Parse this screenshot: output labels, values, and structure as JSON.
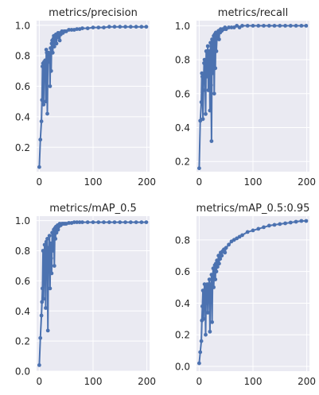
{
  "chart_data": [
    {
      "type": "line",
      "title": "metrics/precision",
      "xlabel": "",
      "ylabel": "",
      "xlim": [
        -5,
        205
      ],
      "ylim": [
        0.04,
        1.03
      ],
      "xticks": [
        0,
        100,
        200
      ],
      "yticks": [
        0.2,
        0.4,
        0.6,
        0.8,
        1.0
      ],
      "ytick_labels": [
        "0.2",
        "0.4",
        "0.6",
        "0.8",
        "1.0"
      ],
      "grid": true,
      "series": [
        {
          "color": "#4c72b0",
          "x": [
            0,
            2,
            4,
            5,
            6,
            7,
            8,
            9,
            10,
            11,
            12,
            13,
            14,
            15,
            16,
            17,
            18,
            19,
            20,
            21,
            22,
            23,
            24,
            25,
            26,
            27,
            28,
            29,
            30,
            31,
            32,
            33,
            34,
            35,
            36,
            37,
            38,
            39,
            40,
            42,
            44,
            46,
            48,
            50,
            55,
            60,
            65,
            70,
            75,
            80,
            90,
            100,
            110,
            120,
            130,
            140,
            150,
            160,
            170,
            180,
            190,
            199
          ],
          "y": [
            0.07,
            0.25,
            0.37,
            0.51,
            0.73,
            0.75,
            0.48,
            0.76,
            0.7,
            0.77,
            0.5,
            0.84,
            0.82,
            0.42,
            0.78,
            0.82,
            0.76,
            0.8,
            0.6,
            0.85,
            0.7,
            0.88,
            0.9,
            0.82,
            0.91,
            0.93,
            0.86,
            0.92,
            0.9,
            0.94,
            0.88,
            0.93,
            0.92,
            0.95,
            0.93,
            0.94,
            0.9,
            0.95,
            0.94,
            0.96,
            0.95,
            0.96,
            0.96,
            0.96,
            0.97,
            0.97,
            0.97,
            0.975,
            0.975,
            0.98,
            0.98,
            0.985,
            0.985,
            0.985,
            0.99,
            0.99,
            0.99,
            0.99,
            0.99,
            0.99,
            0.99,
            0.99
          ]
        }
      ]
    },
    {
      "type": "line",
      "title": "metrics/recall",
      "xlabel": "",
      "ylabel": "",
      "xlim": [
        -5,
        205
      ],
      "ylim": [
        0.14,
        1.03
      ],
      "xticks": [
        0,
        100,
        200
      ],
      "yticks": [
        0.2,
        0.4,
        0.6,
        0.8,
        1.0
      ],
      "ytick_labels": [
        "0.2",
        "0.4",
        "0.6",
        "0.8",
        "1.0"
      ],
      "grid": true,
      "series": [
        {
          "color": "#4c72b0",
          "x": [
            0,
            2,
            4,
            5,
            6,
            7,
            8,
            9,
            10,
            11,
            12,
            13,
            14,
            15,
            16,
            17,
            18,
            19,
            20,
            21,
            22,
            23,
            24,
            25,
            26,
            27,
            28,
            29,
            30,
            31,
            32,
            33,
            34,
            35,
            36,
            37,
            38,
            39,
            40,
            42,
            44,
            46,
            48,
            50,
            55,
            60,
            65,
            70,
            75,
            80,
            90,
            100,
            110,
            120,
            130,
            140,
            150,
            160,
            170,
            180,
            190,
            199
          ],
          "y": [
            0.16,
            0.44,
            0.55,
            0.72,
            0.7,
            0.45,
            0.62,
            0.78,
            0.8,
            0.71,
            0.48,
            0.85,
            0.7,
            0.75,
            0.88,
            0.62,
            0.8,
            0.85,
            0.5,
            0.9,
            0.65,
            0.32,
            0.92,
            0.72,
            0.8,
            0.94,
            0.6,
            0.95,
            0.75,
            0.96,
            0.85,
            0.93,
            0.96,
            0.94,
            0.97,
            0.92,
            0.97,
            0.96,
            0.98,
            0.97,
            0.98,
            0.98,
            0.99,
            0.98,
            0.99,
            0.99,
            0.99,
            1.0,
            0.99,
            1.0,
            1.0,
            1.0,
            1.0,
            1.0,
            1.0,
            1.0,
            1.0,
            1.0,
            1.0,
            1.0,
            1.0,
            1.0
          ]
        }
      ]
    },
    {
      "type": "line",
      "title": "metrics/mAP_0.5",
      "xlabel": "",
      "ylabel": "",
      "xlim": [
        -5,
        205
      ],
      "ylim": [
        0.0,
        1.03
      ],
      "xticks": [
        0,
        100,
        200
      ],
      "yticks": [
        0.0,
        0.2,
        0.4,
        0.6,
        0.8,
        1.0
      ],
      "ytick_labels": [
        "0.0",
        "0.2",
        "0.4",
        "0.6",
        "0.8",
        "1.0"
      ],
      "grid": true,
      "series": [
        {
          "color": "#4c72b0",
          "x": [
            0,
            2,
            4,
            5,
            6,
            7,
            8,
            9,
            10,
            11,
            12,
            13,
            14,
            15,
            16,
            17,
            18,
            19,
            20,
            21,
            22,
            23,
            24,
            25,
            26,
            27,
            28,
            29,
            30,
            31,
            32,
            33,
            34,
            35,
            36,
            37,
            38,
            39,
            40,
            42,
            44,
            46,
            48,
            50,
            55,
            60,
            65,
            70,
            75,
            80,
            90,
            100,
            110,
            120,
            130,
            140,
            150,
            160,
            170,
            180,
            190,
            199
          ],
          "y": [
            0.04,
            0.22,
            0.37,
            0.46,
            0.55,
            0.8,
            0.48,
            0.75,
            0.84,
            0.65,
            0.42,
            0.86,
            0.7,
            0.88,
            0.27,
            0.82,
            0.78,
            0.9,
            0.55,
            0.85,
            0.75,
            0.65,
            0.92,
            0.8,
            0.9,
            0.94,
            0.7,
            0.95,
            0.88,
            0.96,
            0.92,
            0.95,
            0.97,
            0.94,
            0.96,
            0.97,
            0.98,
            0.97,
            0.97,
            0.98,
            0.98,
            0.98,
            0.98,
            0.98,
            0.985,
            0.985,
            0.99,
            0.99,
            0.99,
            0.99,
            0.99,
            0.99,
            0.99,
            0.99,
            0.99,
            0.99,
            0.99,
            0.99,
            0.99,
            0.99,
            0.99,
            0.99
          ]
        }
      ]
    },
    {
      "type": "line",
      "title": "metrics/mAP_0.5:0.95",
      "xlabel": "",
      "ylabel": "",
      "xlim": [
        -5,
        205
      ],
      "ylim": [
        -0.03,
        0.95
      ],
      "xticks": [
        0,
        100,
        200
      ],
      "yticks": [
        0.0,
        0.2,
        0.4,
        0.6,
        0.8
      ],
      "ytick_labels": [
        "0.0",
        "0.2",
        "0.4",
        "0.6",
        "0.8"
      ],
      "grid": true,
      "series": [
        {
          "color": "#4c72b0",
          "x": [
            0,
            2,
            4,
            5,
            6,
            7,
            8,
            9,
            10,
            11,
            12,
            13,
            14,
            15,
            16,
            17,
            18,
            19,
            20,
            21,
            22,
            23,
            24,
            25,
            26,
            27,
            28,
            29,
            30,
            31,
            32,
            33,
            34,
            35,
            36,
            37,
            38,
            39,
            40,
            42,
            44,
            46,
            48,
            50,
            55,
            60,
            65,
            70,
            75,
            80,
            90,
            100,
            110,
            120,
            130,
            140,
            150,
            160,
            170,
            180,
            190,
            199
          ],
          "y": [
            0.02,
            0.09,
            0.16,
            0.29,
            0.38,
            0.48,
            0.3,
            0.45,
            0.52,
            0.44,
            0.2,
            0.5,
            0.4,
            0.52,
            0.34,
            0.48,
            0.52,
            0.55,
            0.22,
            0.52,
            0.45,
            0.58,
            0.28,
            0.55,
            0.62,
            0.5,
            0.6,
            0.64,
            0.55,
            0.65,
            0.6,
            0.67,
            0.63,
            0.66,
            0.7,
            0.65,
            0.7,
            0.68,
            0.72,
            0.7,
            0.73,
            0.74,
            0.72,
            0.75,
            0.77,
            0.79,
            0.8,
            0.81,
            0.82,
            0.83,
            0.85,
            0.86,
            0.87,
            0.88,
            0.89,
            0.895,
            0.9,
            0.905,
            0.91,
            0.915,
            0.92,
            0.92
          ]
        }
      ]
    }
  ]
}
